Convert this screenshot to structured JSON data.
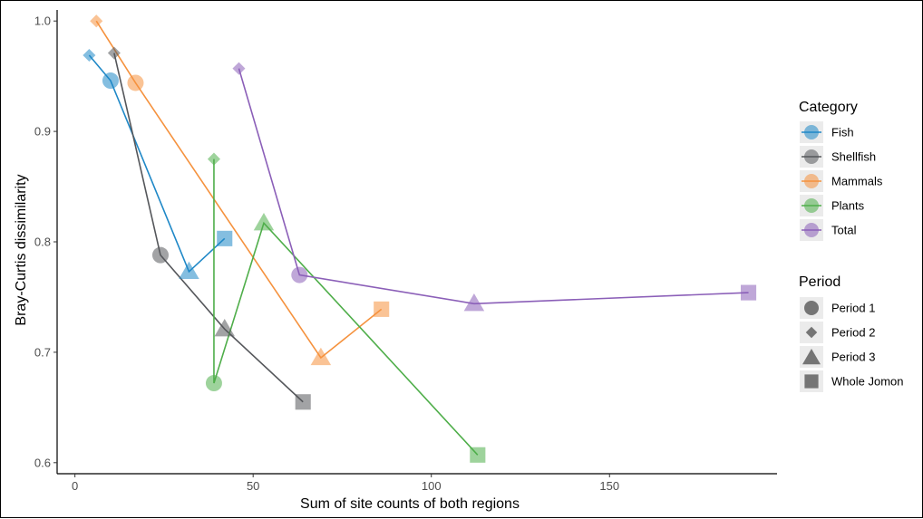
{
  "chart_data": {
    "type": "scatter",
    "xlabel": "Sum of site counts of both regions",
    "ylabel": "Bray-Curtis dissimilarity",
    "xlim": [
      -5,
      197
    ],
    "ylim": [
      0.59,
      1.01
    ],
    "x_ticks": [
      0,
      50,
      100,
      150
    ],
    "y_ticks": [
      0.6,
      0.7,
      0.8,
      0.9,
      1.0
    ],
    "y_tick_labels": [
      "0.6",
      "0.7",
      "0.8",
      "0.9",
      "1.0"
    ],
    "grid": false,
    "legend_placement": "right",
    "category_legend_title": "Category",
    "period_legend_title": "Period",
    "periods": [
      {
        "name": "Period 1",
        "shape": "circle"
      },
      {
        "name": "Period 2",
        "shape": "diamond"
      },
      {
        "name": "Period 3",
        "shape": "triangle"
      },
      {
        "name": "Whole Jomon",
        "shape": "square"
      }
    ],
    "series": [
      {
        "name": "Fish",
        "color": "#1f88c7",
        "points": [
          {
            "period": "Period 2",
            "x": 4,
            "y": 0.969
          },
          {
            "period": "Period 1",
            "x": 10,
            "y": 0.946
          },
          {
            "period": "Period 3",
            "x": 32,
            "y": 0.773
          },
          {
            "period": "Whole Jomon",
            "x": 42,
            "y": 0.803
          }
        ]
      },
      {
        "name": "Shellfish",
        "color": "#55575b",
        "points": [
          {
            "period": "Period 2",
            "x": 11,
            "y": 0.971
          },
          {
            "period": "Period 1",
            "x": 24,
            "y": 0.788
          },
          {
            "period": "Period 3",
            "x": 42,
            "y": 0.721
          },
          {
            "period": "Whole Jomon",
            "x": 64,
            "y": 0.655
          }
        ]
      },
      {
        "name": "Mammals",
        "color": "#f5923e",
        "points": [
          {
            "period": "Period 2",
            "x": 6,
            "y": 1.0
          },
          {
            "period": "Period 1",
            "x": 17,
            "y": 0.944
          },
          {
            "period": "Period 3",
            "x": 69,
            "y": 0.695
          },
          {
            "period": "Whole Jomon",
            "x": 86,
            "y": 0.739
          }
        ]
      },
      {
        "name": "Plants",
        "color": "#4fae4a",
        "points": [
          {
            "period": "Period 2",
            "x": 39,
            "y": 0.875
          },
          {
            "period": "Period 1",
            "x": 39,
            "y": 0.672
          },
          {
            "period": "Period 3",
            "x": 53,
            "y": 0.817
          },
          {
            "period": "Whole Jomon",
            "x": 113,
            "y": 0.607
          }
        ]
      },
      {
        "name": "Total",
        "color": "#8b5fb8",
        "points": [
          {
            "period": "Period 2",
            "x": 46,
            "y": 0.957
          },
          {
            "period": "Period 1",
            "x": 63,
            "y": 0.77
          },
          {
            "period": "Period 3",
            "x": 112,
            "y": 0.744
          },
          {
            "period": "Whole Jomon",
            "x": 189,
            "y": 0.754
          }
        ]
      }
    ]
  }
}
